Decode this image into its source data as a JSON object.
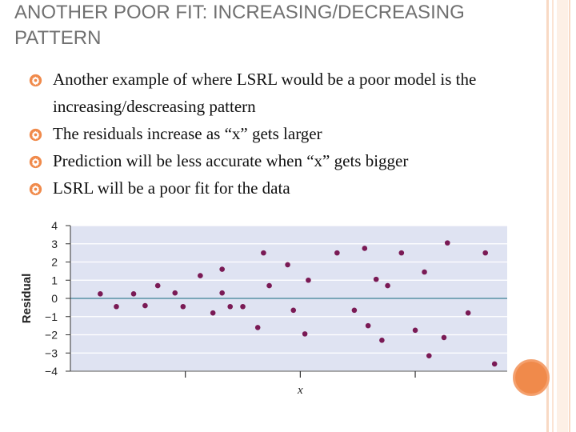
{
  "slide": {
    "title": "ANOTHER POOR FIT: INCREASING/DECREASING PATTERN",
    "bullets": [
      "Another example of where LSRL would be a poor model is the increasing/descreasing pattern",
      "The residuals increase as “x” gets larger",
      "Prediction will be less accurate when “x” gets bigger",
      "LSRL will be a poor fit for the data"
    ],
    "bullet_icon": "gear-icon",
    "colors": {
      "accent": "#f08a4b",
      "border_light": "#f8d9c4",
      "plot_bg": "#dfe3f2",
      "zero_line": "#7aa6b8",
      "point": "#7a1a55"
    }
  },
  "chart_data": {
    "type": "scatter",
    "title": "",
    "xlabel": "x",
    "ylabel": "Residual",
    "ylim": [
      -4,
      4
    ],
    "yticks": [
      "4",
      "3",
      "2",
      "1",
      "0",
      "−1",
      "−2",
      "−3",
      "−4"
    ],
    "xlim": [
      0,
      38
    ],
    "x_ticks_unlabeled": [
      10,
      20,
      30
    ],
    "grid": true,
    "series": [
      {
        "points": [
          [
            2.6,
            0.25
          ],
          [
            4.0,
            -0.45
          ],
          [
            5.5,
            0.25
          ],
          [
            6.5,
            -0.4
          ],
          [
            7.6,
            0.7
          ],
          [
            9.1,
            0.3
          ],
          [
            9.8,
            -0.45
          ],
          [
            11.3,
            1.25
          ],
          [
            12.4,
            -0.8
          ],
          [
            13.2,
            1.6
          ],
          [
            13.2,
            0.3
          ],
          [
            13.9,
            -0.45
          ],
          [
            15.0,
            -0.45
          ],
          [
            16.3,
            -1.6
          ],
          [
            16.8,
            2.5
          ],
          [
            17.3,
            0.7
          ],
          [
            18.9,
            1.85
          ],
          [
            19.4,
            -0.65
          ],
          [
            20.4,
            -1.95
          ],
          [
            20.7,
            1.0
          ],
          [
            23.2,
            2.5
          ],
          [
            24.7,
            -0.65
          ],
          [
            25.6,
            2.75
          ],
          [
            25.9,
            -1.5
          ],
          [
            26.6,
            1.05
          ],
          [
            27.1,
            -2.3
          ],
          [
            27.6,
            0.7
          ],
          [
            28.8,
            2.5
          ],
          [
            30.0,
            -1.75
          ],
          [
            30.8,
            1.45
          ],
          [
            31.2,
            -3.15
          ],
          [
            32.5,
            -2.15
          ],
          [
            32.8,
            3.05
          ],
          [
            34.6,
            -0.8
          ],
          [
            36.1,
            2.5
          ],
          [
            36.9,
            -3.6
          ]
        ]
      }
    ]
  }
}
